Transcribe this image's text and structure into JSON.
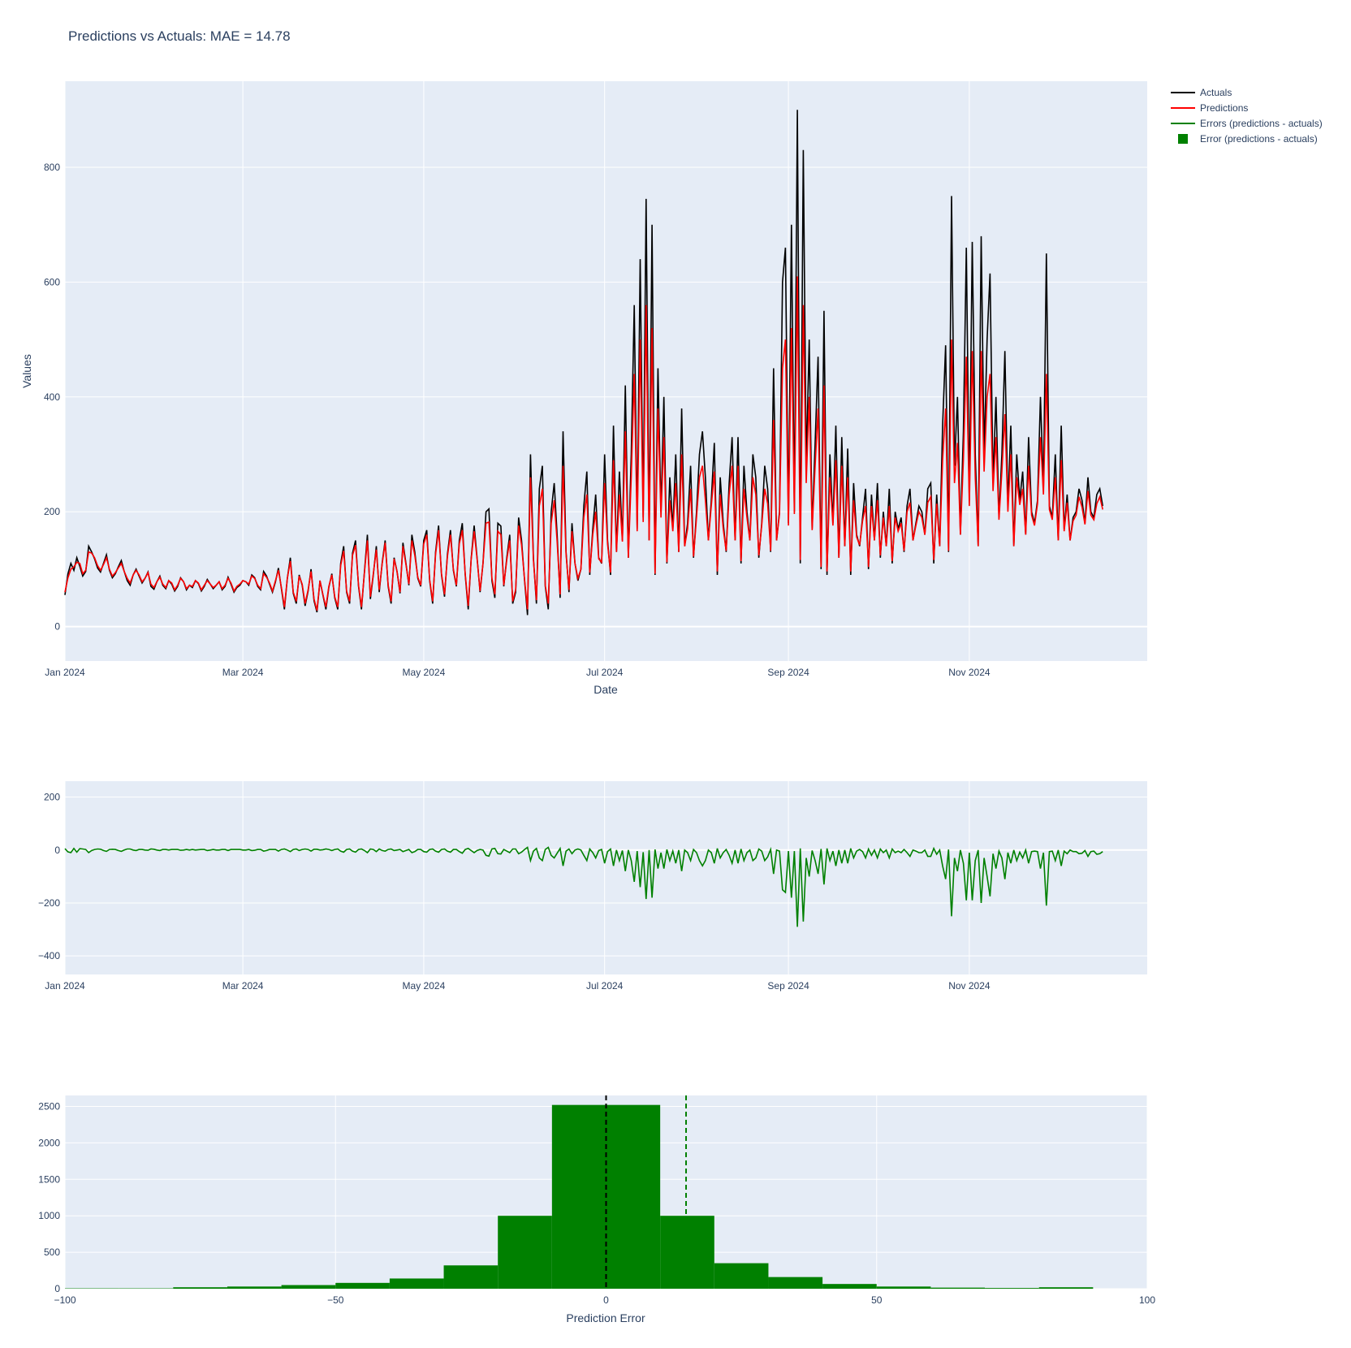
{
  "title": "Predictions vs Actuals: MAE = 14.78",
  "colors": {
    "actuals": "#000000",
    "predictions": "#ff0000",
    "errors": "#008000",
    "histogram": "#008000",
    "zero_line": "#000000",
    "mae_line": "#008000",
    "plot_bg": "#e5ecf6",
    "text": "#2a3f5f"
  },
  "legend": {
    "placement": "top-right",
    "items": [
      {
        "label": "Actuals",
        "kind": "line",
        "color": "#000000"
      },
      {
        "label": "Predictions",
        "kind": "line",
        "color": "#ff0000"
      },
      {
        "label": "Errors (predictions - actuals)",
        "kind": "line",
        "color": "#008000"
      },
      {
        "label": "Error (predictions - actuals)",
        "kind": "square",
        "color": "#008000"
      }
    ]
  },
  "chart_data": [
    {
      "type": "line",
      "xlabel": "Date",
      "ylabel": "Values",
      "x_range": [
        "2024-01-01",
        "2024-12-31"
      ],
      "x_ticks": [
        "Jan 2024",
        "Mar 2024",
        "May 2024",
        "Jul 2024",
        "Sep 2024",
        "Nov 2024"
      ],
      "x_tick_dates": [
        "2024-01-01",
        "2024-03-01",
        "2024-05-01",
        "2024-07-01",
        "2024-09-01",
        "2024-11-01"
      ],
      "ylim": [
        -60,
        950
      ],
      "y_ticks": [
        0,
        200,
        400,
        600,
        800
      ],
      "grid": true,
      "sampling": "daily approximation",
      "series": [
        {
          "name": "Actuals",
          "color": "#000000",
          "start": "2024-01-01",
          "values": [
            55,
            92,
            110,
            98,
            120,
            105,
            88,
            96,
            140,
            130,
            118,
            102,
            95,
            110,
            125,
            98,
            85,
            92,
            104,
            115,
            96,
            80,
            72,
            90,
            100,
            88,
            76,
            84,
            95,
            70,
            65,
            78,
            88,
            72,
            66,
            80,
            74,
            62,
            70,
            85,
            78,
            64,
            72,
            68,
            80,
            75,
            62,
            70,
            82,
            74,
            66,
            72,
            78,
            64,
            70,
            86,
            74,
            60,
            68,
            72,
            80,
            78,
            72,
            90,
            85,
            70,
            64,
            96,
            88,
            74,
            60,
            78,
            102,
            66,
            30,
            84,
            120,
            58,
            40,
            90,
            72,
            36,
            62,
            100,
            45,
            25,
            80,
            55,
            30,
            68,
            92,
            50,
            30,
            110,
            140,
            60,
            40,
            128,
            150,
            70,
            30,
            96,
            160,
            48,
            90,
            140,
            60,
            112,
            150,
            70,
            40,
            120,
            96,
            58,
            146,
            110,
            72,
            160,
            130,
            84,
            70,
            150,
            168,
            80,
            40,
            130,
            176,
            90,
            52,
            126,
            168,
            98,
            70,
            150,
            180,
            90,
            30,
            118,
            176,
            120,
            60,
            110,
            200,
            205,
            80,
            50,
            180,
            175,
            70,
            120,
            160,
            40,
            60,
            190,
            150,
            80,
            20,
            300,
            120,
            40,
            240,
            280,
            70,
            30,
            200,
            250,
            160,
            50,
            340,
            130,
            60,
            180,
            110,
            80,
            100,
            210,
            270,
            90,
            170,
            230,
            120,
            110,
            300,
            150,
            90,
            350,
            130,
            270,
            150,
            420,
            120,
            300,
            560,
            170,
            640,
            190,
            745,
            150,
            700,
            90,
            450,
            200,
            400,
            110,
            260,
            170,
            300,
            130,
            380,
            140,
            180,
            280,
            120,
            200,
            300,
            340,
            260,
            150,
            220,
            320,
            90,
            260,
            180,
            130,
            250,
            330,
            150,
            330,
            110,
            280,
            200,
            150,
            300,
            260,
            120,
            180,
            280,
            240,
            130,
            450,
            150,
            200,
            600,
            660,
            180,
            700,
            200,
            900,
            110,
            830,
            280,
            500,
            170,
            320,
            470,
            100,
            550,
            90,
            300,
            180,
            350,
            120,
            330,
            140,
            310,
            90,
            250,
            160,
            140,
            190,
            240,
            100,
            230,
            150,
            250,
            120,
            200,
            140,
            240,
            110,
            200,
            170,
            190,
            130,
            210,
            240,
            150,
            180,
            210,
            200,
            160,
            240,
            250,
            110,
            230,
            140,
            350,
            490,
            130,
            750,
            280,
            400,
            160,
            340,
            660,
            220,
            670,
            300,
            140,
            680,
            300,
            500,
            615,
            250,
            400,
            190,
            300,
            480,
            210,
            350,
            140,
            300,
            220,
            270,
            160,
            330,
            200,
            180,
            220,
            400,
            240,
            650,
            210,
            190,
            300,
            150,
            350,
            170,
            230,
            150,
            190,
            200,
            240,
            220,
            180,
            260,
            200,
            190,
            230,
            240,
            210
          ]
        },
        {
          "name": "Predictions",
          "color": "#ff0000",
          "start": "2024-01-01",
          "values": [
            60,
            85,
            100,
            104,
            112,
            110,
            92,
            98,
            130,
            128,
            120,
            106,
            98,
            108,
            120,
            100,
            88,
            94,
            102,
            110,
            96,
            84,
            76,
            90,
            98,
            90,
            78,
            84,
            94,
            74,
            68,
            78,
            86,
            74,
            68,
            80,
            76,
            64,
            72,
            84,
            78,
            66,
            72,
            70,
            80,
            76,
            64,
            72,
            80,
            74,
            68,
            72,
            78,
            66,
            72,
            84,
            76,
            62,
            70,
            74,
            80,
            78,
            74,
            88,
            84,
            72,
            66,
            92,
            86,
            76,
            62,
            80,
            98,
            68,
            34,
            84,
            114,
            60,
            44,
            88,
            74,
            40,
            64,
            96,
            48,
            28,
            80,
            56,
            34,
            70,
            90,
            52,
            34,
            106,
            132,
            62,
            44,
            124,
            142,
            72,
            34,
            94,
            150,
            52,
            92,
            134,
            64,
            110,
            146,
            72,
            44,
            118,
            96,
            60,
            140,
            108,
            74,
            150,
            124,
            86,
            72,
            144,
            160,
            82,
            44,
            126,
            168,
            92,
            56,
            122,
            160,
            100,
            72,
            144,
            168,
            92,
            36,
            116,
            166,
            118,
            62,
            110,
            180,
            182,
            84,
            56,
            166,
            160,
            72,
            116,
            150,
            44,
            64,
            176,
            142,
            82,
            30,
            260,
            116,
            46,
            210,
            240,
            72,
            40,
            180,
            220,
            148,
            56,
            280,
            126,
            64,
            166,
            110,
            84,
            100,
            190,
            230,
            94,
            160,
            200,
            118,
            112,
            250,
            144,
            94,
            290,
            130,
            230,
            148,
            340,
            120,
            260,
            440,
            166,
            500,
            182,
            560,
            150,
            520,
            92,
            380,
            190,
            330,
            112,
            220,
            166,
            250,
            130,
            300,
            140,
            170,
            240,
            122,
            190,
            260,
            280,
            220,
            150,
            210,
            270,
            96,
            230,
            170,
            132,
            230,
            280,
            150,
            280,
            114,
            240,
            190,
            150,
            260,
            230,
            124,
            176,
            240,
            214,
            132,
            360,
            150,
            196,
            450,
            500,
            176,
            520,
            196,
            610,
            116,
            560,
            250,
            400,
            168,
            280,
            380,
            104,
            420,
            96,
            260,
            176,
            290,
            120,
            280,
            140,
            260,
            96,
            220,
            156,
            142,
            184,
            210,
            104,
            210,
            150,
            220,
            124,
            190,
            140,
            210,
            114,
            190,
            166,
            180,
            132,
            200,
            216,
            150,
            176,
            200,
            190,
            160,
            216,
            226,
            116,
            214,
            140,
            290,
            380,
            132,
            500,
            250,
            320,
            160,
            290,
            470,
            210,
            480,
            260,
            140,
            480,
            270,
            400,
            440,
            236,
            330,
            186,
            270,
            370,
            200,
            300,
            140,
            260,
            212,
            240,
            160,
            280,
            194,
            176,
            214,
            330,
            230,
            440,
            204,
            186,
            260,
            150,
            290,
            166,
            216,
            150,
            184,
            194,
            226,
            208,
            178,
            236,
            194,
            186,
            214,
            226,
            204
          ]
        }
      ]
    },
    {
      "type": "line",
      "x_range": [
        "2024-01-01",
        "2024-12-31"
      ],
      "x_ticks": [
        "Jan 2024",
        "Mar 2024",
        "May 2024",
        "Jul 2024",
        "Sep 2024",
        "Nov 2024"
      ],
      "ylim": [
        -470,
        260
      ],
      "y_ticks": [
        -400,
        -200,
        0,
        200
      ],
      "grid": true,
      "series": [
        {
          "name": "Errors (predictions - actuals)",
          "color": "#008000",
          "description_of_values": "Predictions minus Actuals per day",
          "derived_from": "panel 1"
        }
      ]
    },
    {
      "type": "bar",
      "subtype": "histogram",
      "xlabel": "Prediction Error",
      "xlim": [
        -100,
        100
      ],
      "x_ticks": [
        -100,
        -50,
        0,
        50,
        100
      ],
      "ylim": [
        0,
        2650
      ],
      "y_ticks": [
        0,
        500,
        1000,
        1500,
        2000,
        2500
      ],
      "bin_width": 10,
      "bin_starts": [
        -100,
        -90,
        -80,
        -70,
        -60,
        -50,
        -40,
        -30,
        -20,
        -10,
        0,
        10,
        20,
        30,
        40,
        50,
        60,
        70,
        80,
        90
      ],
      "values": [
        5,
        5,
        20,
        30,
        50,
        80,
        140,
        320,
        1000,
        2520,
        2520,
        1000,
        350,
        160,
        65,
        30,
        15,
        10,
        20,
        0
      ],
      "series": [
        {
          "name": "Error (predictions - actuals)",
          "color": "#008000"
        }
      ],
      "reference_lines": [
        {
          "x": 0,
          "style": "dashed",
          "color": "#000000"
        },
        {
          "x": 14.78,
          "style": "dashed",
          "color": "#008000"
        }
      ],
      "grid": true
    }
  ]
}
